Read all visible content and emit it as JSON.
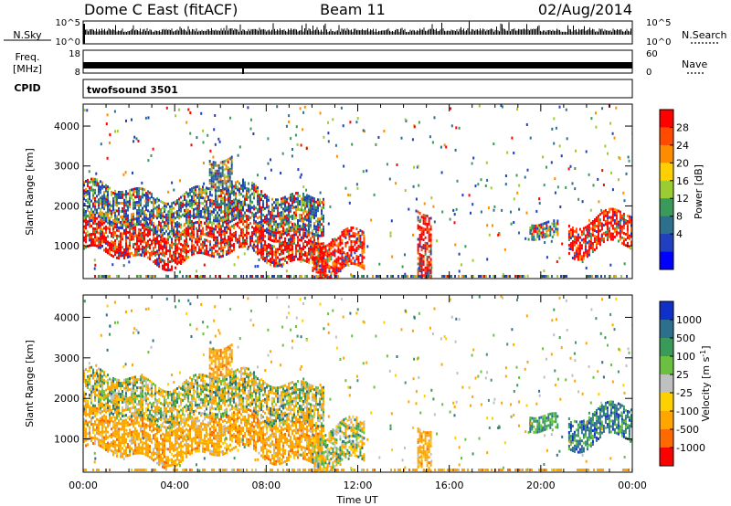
{
  "header": {
    "radar": "Dome C East (fitACF)",
    "beam": "Beam 11",
    "date": "02/Aug/2014"
  },
  "noise_panel": {
    "left_label": "N.Sky",
    "left_ticks": [
      "10^5",
      "10^0"
    ],
    "right_label": "N.Search",
    "right_ticks": [
      "10^5",
      "10^0"
    ]
  },
  "freq_panel": {
    "left_label_top": "Freq.",
    "left_label_unit": "[MHz]",
    "left_ticks": [
      "18",
      "8"
    ],
    "right_label": "Nave",
    "right_ticks": [
      "60",
      "0"
    ]
  },
  "cpid_panel": {
    "left_label": "CPID",
    "program": "twofsound 3501"
  },
  "chart_data": [
    {
      "type": "heatmap",
      "name": "power-panel",
      "ylabel": "Slant Range [km]",
      "yticks": [
        1000,
        2000,
        3000,
        4000
      ],
      "ylim": [
        180,
        4550
      ],
      "xlim_hours": [
        0,
        24
      ],
      "colorbar_label": "Power [dB]",
      "colorbar_ticks": [
        "28",
        "24",
        "20",
        "16",
        "12",
        "8",
        "4"
      ],
      "colorbar_colors": [
        "#ff0000",
        "#ff4a00",
        "#ff8c00",
        "#ffd000",
        "#9acd32",
        "#3a9a5a",
        "#2e6f8e",
        "#2040c0",
        "#0000ff"
      ],
      "regions": [
        {
          "t0": 0.0,
          "t1": 10.5,
          "r0": 700,
          "r1": 1500,
          "level": "high"
        },
        {
          "t0": 0.0,
          "t1": 10.5,
          "r0": 1500,
          "r1": 2400,
          "level": "medium"
        },
        {
          "t0": 5.5,
          "t1": 6.5,
          "r0": 2400,
          "r1": 3100,
          "level": "medium"
        },
        {
          "t0": 10.0,
          "t1": 12.3,
          "r0": 300,
          "r1": 1200,
          "level": "high"
        },
        {
          "t0": 14.6,
          "t1": 15.2,
          "r0": 500,
          "r1": 2100,
          "level": "high"
        },
        {
          "t0": 19.5,
          "t1": 20.7,
          "r0": 1300,
          "r1": 1700,
          "level": "medium"
        },
        {
          "t0": 21.2,
          "t1": 24.0,
          "r0": 900,
          "r1": 1700,
          "level": "high"
        }
      ]
    },
    {
      "type": "heatmap",
      "name": "velocity-panel",
      "ylabel": "Slant Range [km]",
      "yticks": [
        1000,
        2000,
        3000,
        4000
      ],
      "ylim": [
        180,
        4550
      ],
      "xlim_hours": [
        0,
        24
      ],
      "xlabel": "Time UT",
      "xticks": [
        "00:00",
        "04:00",
        "08:00",
        "12:00",
        "16:00",
        "20:00",
        "00:00"
      ],
      "colorbar_label": "Velocity [m s^-1]",
      "colorbar_ticks": [
        "1000",
        "500",
        "100",
        "25",
        "-25",
        "-100",
        "-500",
        "-1000"
      ],
      "colorbar_colors": [
        "#1030c8",
        "#2e6f8e",
        "#3a9a5a",
        "#6cc040",
        "#c0c0c0",
        "#ffd000",
        "#ffa500",
        "#ff6a00",
        "#ff0000"
      ],
      "regions": [
        {
          "t0": 0.0,
          "t1": 10.5,
          "r0": 600,
          "r1": 1500,
          "level": "orange"
        },
        {
          "t0": 0.0,
          "t1": 10.5,
          "r0": 1500,
          "r1": 2500,
          "level": "mixed"
        },
        {
          "t0": 5.5,
          "t1": 6.5,
          "r0": 2500,
          "r1": 3200,
          "level": "orange"
        },
        {
          "t0": 10.0,
          "t1": 12.3,
          "r0": 300,
          "r1": 1300,
          "level": "mixed"
        },
        {
          "t0": 14.6,
          "t1": 15.2,
          "r0": 500,
          "r1": 1500,
          "level": "orange"
        },
        {
          "t0": 19.5,
          "t1": 20.7,
          "r0": 1300,
          "r1": 1700,
          "level": "green"
        },
        {
          "t0": 21.2,
          "t1": 24.0,
          "r0": 900,
          "r1": 1700,
          "level": "bluegreen"
        }
      ]
    }
  ]
}
